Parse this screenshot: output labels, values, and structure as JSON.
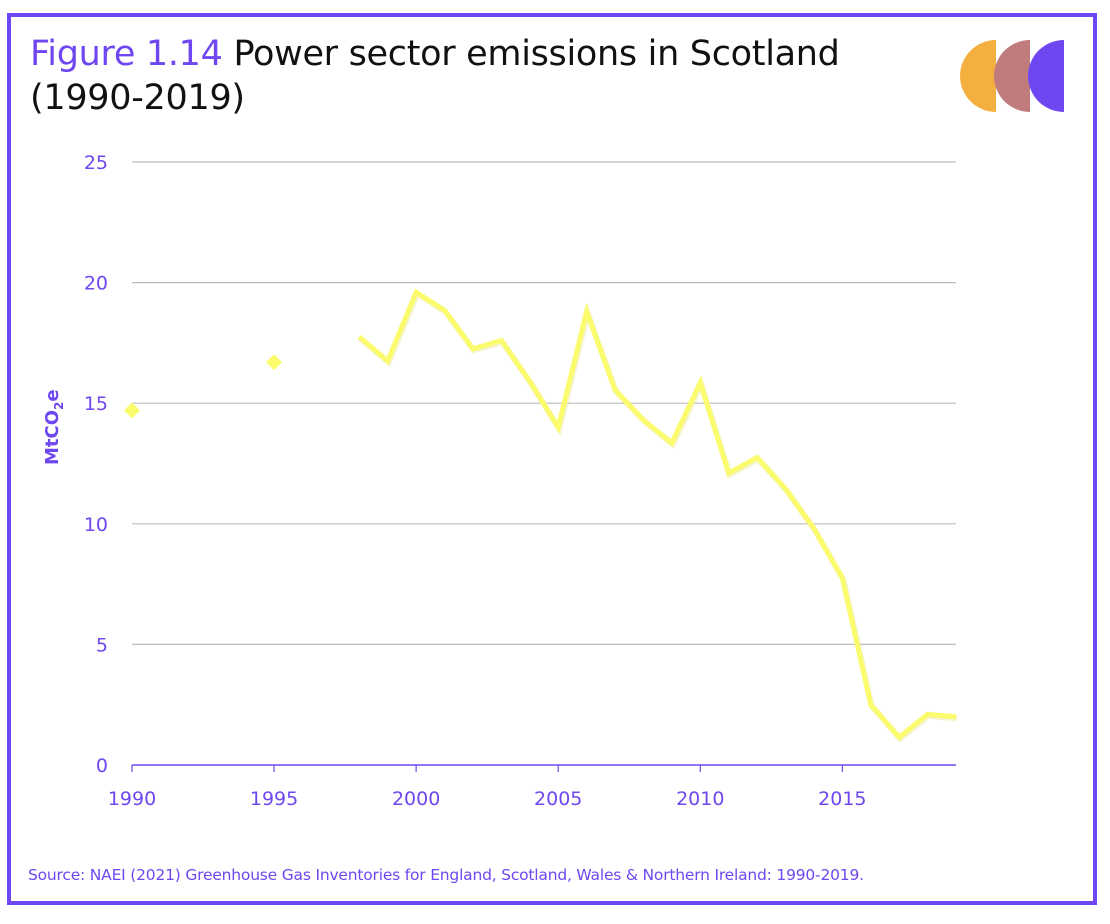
{
  "header": {
    "figure_label": "Figure 1.14",
    "title": "Power sector emissions in Scotland",
    "title_line2": "(1990-2019)"
  },
  "logo": {
    "colors": [
      "#f3b03f",
      "#c07c7c",
      "#6f47f0"
    ]
  },
  "footer": {
    "source": "Source: NAEI (2021) Greenhouse Gas Inventories for England, Scotland, Wales & Northern Ireland: 1990-2019."
  },
  "chart_data": {
    "type": "line",
    "title": "Figure 1.14 Power sector emissions in Scotland (1990-2019)",
    "xlabel": "",
    "ylabel": "MtCO2e",
    "ylabel_main": "MtCO",
    "ylabel_sub": "2",
    "ylabel_end": "e",
    "xlim": [
      1990,
      2019
    ],
    "ylim": [
      0,
      25
    ],
    "grid": true,
    "y_ticks": [
      "0",
      "5",
      "10",
      "15",
      "20",
      "25"
    ],
    "x_ticks": [
      "1990",
      "1995",
      "2000",
      "2005",
      "2010",
      "2015"
    ],
    "colors": {
      "series": "#fbfb6e",
      "axis": "#6f47f0",
      "grid": "#bdbdbd"
    },
    "markers": [
      {
        "x": 1990,
        "y": 14.7
      },
      {
        "x": 1995,
        "y": 16.7
      }
    ],
    "series": [
      {
        "name": "Power sector emissions",
        "x": [
          1998,
          1999,
          2000,
          2001,
          2002,
          2003,
          2004,
          2005,
          2006,
          2007,
          2008,
          2009,
          2010,
          2011,
          2012,
          2013,
          2014,
          2015,
          2016,
          2017,
          2018,
          2019
        ],
        "values": [
          17.75,
          16.75,
          19.6,
          18.85,
          17.25,
          17.6,
          15.9,
          14.0,
          18.8,
          15.55,
          14.3,
          13.35,
          15.85,
          12.1,
          12.75,
          11.45,
          9.8,
          7.75,
          2.5,
          1.15,
          2.1,
          2.0
        ]
      }
    ]
  }
}
